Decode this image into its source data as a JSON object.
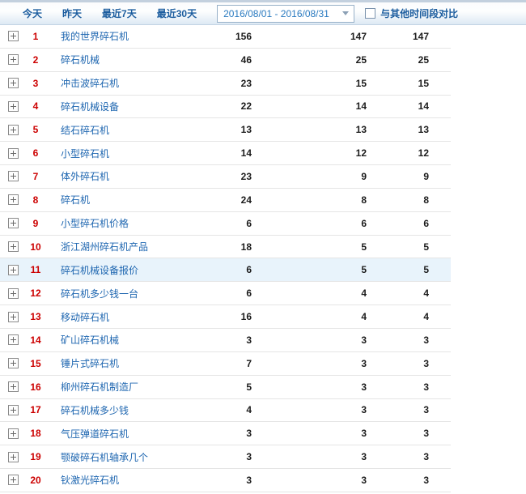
{
  "toolbar": {
    "tabs": [
      {
        "label": "今天"
      },
      {
        "label": "昨天"
      },
      {
        "label": "最近7天"
      },
      {
        "label": "最近30天"
      }
    ],
    "date_range": {
      "value": "2016/08/01 - 2016/08/31"
    },
    "compare_checkbox": {
      "label": "与其他时间段对比",
      "checked": false
    }
  },
  "table": {
    "rows": [
      {
        "rank": "1",
        "keyword": "我的世界碎石机",
        "v1": "156",
        "v2": "147",
        "v3": "147",
        "highlighted": false
      },
      {
        "rank": "2",
        "keyword": "碎石机械",
        "v1": "46",
        "v2": "25",
        "v3": "25",
        "highlighted": false
      },
      {
        "rank": "3",
        "keyword": "冲击波碎石机",
        "v1": "23",
        "v2": "15",
        "v3": "15",
        "highlighted": false
      },
      {
        "rank": "4",
        "keyword": "碎石机械设备",
        "v1": "22",
        "v2": "14",
        "v3": "14",
        "highlighted": false
      },
      {
        "rank": "5",
        "keyword": "结石碎石机",
        "v1": "13",
        "v2": "13",
        "v3": "13",
        "highlighted": false
      },
      {
        "rank": "6",
        "keyword": "小型碎石机",
        "v1": "14",
        "v2": "12",
        "v3": "12",
        "highlighted": false
      },
      {
        "rank": "7",
        "keyword": "体外碎石机",
        "v1": "23",
        "v2": "9",
        "v3": "9",
        "highlighted": false
      },
      {
        "rank": "8",
        "keyword": "碎石机",
        "v1": "24",
        "v2": "8",
        "v3": "8",
        "highlighted": false
      },
      {
        "rank": "9",
        "keyword": "小型碎石机价格",
        "v1": "6",
        "v2": "6",
        "v3": "6",
        "highlighted": false
      },
      {
        "rank": "10",
        "keyword": "浙江湖州碎石机产品",
        "v1": "18",
        "v2": "5",
        "v3": "5",
        "highlighted": false
      },
      {
        "rank": "11",
        "keyword": "碎石机械设备报价",
        "v1": "6",
        "v2": "5",
        "v3": "5",
        "highlighted": true
      },
      {
        "rank": "12",
        "keyword": "碎石机多少钱一台",
        "v1": "6",
        "v2": "4",
        "v3": "4",
        "highlighted": false
      },
      {
        "rank": "13",
        "keyword": "移动碎石机",
        "v1": "16",
        "v2": "4",
        "v3": "4",
        "highlighted": false
      },
      {
        "rank": "14",
        "keyword": "矿山碎石机械",
        "v1": "3",
        "v2": "3",
        "v3": "3",
        "highlighted": false
      },
      {
        "rank": "15",
        "keyword": "锤片式碎石机",
        "v1": "7",
        "v2": "3",
        "v3": "3",
        "highlighted": false
      },
      {
        "rank": "16",
        "keyword": "柳州碎石机制造厂",
        "v1": "5",
        "v2": "3",
        "v3": "3",
        "highlighted": false
      },
      {
        "rank": "17",
        "keyword": "碎石机械多少钱",
        "v1": "4",
        "v2": "3",
        "v3": "3",
        "highlighted": false
      },
      {
        "rank": "18",
        "keyword": "气压弹道碎石机",
        "v1": "3",
        "v2": "3",
        "v3": "3",
        "highlighted": false
      },
      {
        "rank": "19",
        "keyword": "颚破碎石机轴承几个",
        "v1": "3",
        "v2": "3",
        "v3": "3",
        "highlighted": false
      },
      {
        "rank": "20",
        "keyword": "钬激光碎石机",
        "v1": "3",
        "v2": "3",
        "v3": "3",
        "highlighted": false
      }
    ]
  },
  "colors": {
    "link_blue": "#1e66b0",
    "tab_blue": "#1b5c9e",
    "rank_red": "#cc0000",
    "highlight_row_bg": "#e8f3fb",
    "toolbar_gradient_bottom": "#dde9f4",
    "row_border": "#e5e5e5"
  }
}
